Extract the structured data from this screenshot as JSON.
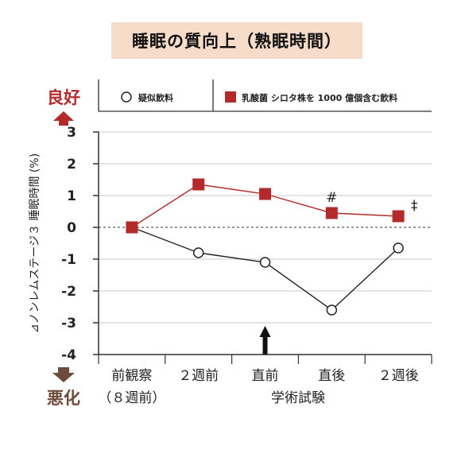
{
  "chart_data": {
    "type": "line",
    "title": "睡眠の質向上（熟眠時間）",
    "ylabel": "⊿ノンレムステージ３ 睡眠時間 (%)",
    "xlabel": "学術試験",
    "categories": [
      "前観察",
      "２週前",
      "直前",
      "直後",
      "２週後"
    ],
    "category_sub": [
      "（８週前）",
      "",
      "",
      "",
      ""
    ],
    "ylim": [
      -4,
      3
    ],
    "yticks": [
      "3",
      "2",
      "1",
      "0",
      "-1",
      "-2",
      "-3",
      "-4"
    ],
    "grid": true,
    "zero_line": "dashed",
    "legend_position": "top",
    "good_label": "良好",
    "bad_label": "悪化",
    "arrow_at_category": 2.5,
    "series": [
      {
        "name": "疑似飲料",
        "marker": "circle",
        "color": "#222222",
        "values": [
          0,
          -0.8,
          -1.1,
          -2.6,
          -0.65
        ]
      },
      {
        "name": "乳酸菌 シロタ株を 1000 億個含む飲料",
        "marker": "square",
        "color": "#b22a2a",
        "values": [
          0,
          1.35,
          1.05,
          0.45,
          0.35
        ],
        "annotations": [
          "",
          "",
          "",
          "#",
          "‡"
        ]
      }
    ]
  }
}
